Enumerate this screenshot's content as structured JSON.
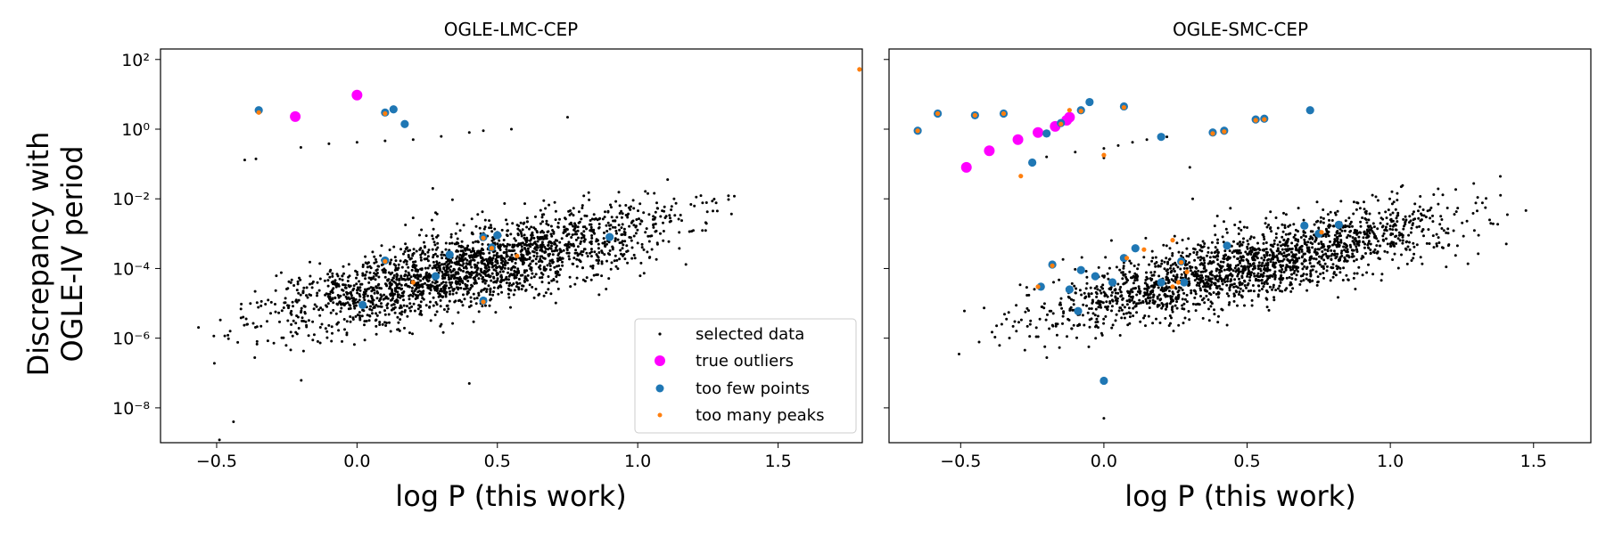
{
  "figure": {
    "ylabel_line1": "Discrepancy with",
    "ylabel_line2": "OGLE-IV period"
  },
  "legend": {
    "entries": [
      {
        "label": "selected data",
        "color": "#000000",
        "marker": "small-dot"
      },
      {
        "label": "true outliers",
        "color": "#ff00ff",
        "marker": "large-dot"
      },
      {
        "label": "too few points",
        "color": "#1f77b4",
        "marker": "medium-dot"
      },
      {
        "label": "too many peaks",
        "color": "#ff7f0e",
        "marker": "tiny-dot"
      }
    ]
  },
  "chart_data": [
    {
      "type": "scatter",
      "title": "OGLE-LMC-CEP",
      "xlabel": "log P (this work)",
      "ylabel": "Discrepancy with OGLE-IV period",
      "yscale": "log",
      "xlim": [
        -0.7,
        1.8
      ],
      "ylim": [
        1e-09,
        200
      ],
      "xticks": [
        -0.5,
        0.0,
        0.5,
        1.0,
        1.5
      ],
      "xtick_labels": [
        "−0.5",
        "0.0",
        "0.5",
        "1.0",
        "1.5"
      ],
      "yticks": [
        1e-08,
        1e-06,
        0.0001,
        0.01,
        1,
        100
      ],
      "ytick_labels": [
        "10⁻⁸",
        "10⁻⁶",
        "10⁻⁴",
        "10⁻²",
        "10⁰",
        "10²"
      ],
      "grid": false,
      "legend": "lower-right",
      "series": [
        {
          "name": "selected data",
          "color": "#000000",
          "trend": {
            "x_range": [
              -0.65,
              1.45
            ],
            "log10y_at_xmin": -6.0,
            "log10y_slope": 1.9,
            "scatter": 0.55
          },
          "extra_points": [
            [
              -0.4,
              0.13
            ],
            [
              -0.36,
              0.14
            ],
            [
              -0.2,
              0.3
            ],
            [
              -0.1,
              0.38
            ],
            [
              0.0,
              0.42
            ],
            [
              0.1,
              0.46
            ],
            [
              0.2,
              0.5
            ],
            [
              0.3,
              0.62
            ],
            [
              0.4,
              0.8
            ],
            [
              0.45,
              0.9
            ],
            [
              0.55,
              1.0
            ],
            [
              0.75,
              2.2
            ],
            [
              0.27,
              0.02
            ],
            [
              0.28,
              0.004
            ],
            [
              -0.49,
              1.2e-09
            ],
            [
              -0.44,
              4e-09
            ],
            [
              0.4,
              5e-08
            ]
          ]
        },
        {
          "name": "true outliers",
          "color": "#ff00ff",
          "points": [
            [
              -0.22,
              2.3
            ],
            [
              0.0,
              9.5
            ]
          ]
        },
        {
          "name": "too few points",
          "color": "#1f77b4",
          "points": [
            [
              -0.35,
              3.5
            ],
            [
              0.1,
              3.0
            ],
            [
              0.13,
              3.7
            ],
            [
              0.17,
              1.4
            ],
            [
              0.1,
              0.00017
            ],
            [
              0.33,
              0.00025
            ],
            [
              0.45,
              0.0008
            ],
            [
              0.48,
              0.0004
            ],
            [
              0.5,
              0.0009
            ],
            [
              0.02,
              9e-06
            ],
            [
              0.28,
              6e-05
            ],
            [
              0.45,
              1.2e-05
            ],
            [
              0.9,
              0.0008
            ]
          ]
        },
        {
          "name": "too many peaks",
          "color": "#ff7f0e",
          "points": [
            [
              -0.35,
              3.0
            ],
            [
              0.1,
              2.8
            ],
            [
              0.1,
              0.00016
            ],
            [
              0.45,
              0.00075
            ],
            [
              0.48,
              0.00038
            ],
            [
              0.2,
              4e-05
            ],
            [
              0.45,
              1.1e-05
            ],
            [
              0.57,
              0.00023
            ],
            [
              1.79,
              52
            ]
          ]
        }
      ]
    },
    {
      "type": "scatter",
      "title": "OGLE-SMC-CEP",
      "xlabel": "log P (this work)",
      "yscale": "log",
      "xlim": [
        -0.75,
        1.7
      ],
      "ylim": [
        1e-09,
        200
      ],
      "xticks": [
        -0.5,
        0.0,
        0.5,
        1.0,
        1.5
      ],
      "xtick_labels": [
        "−0.5",
        "0.0",
        "0.5",
        "1.0",
        "1.5"
      ],
      "grid": false,
      "series": [
        {
          "name": "selected data",
          "color": "#000000",
          "trend": {
            "x_range": [
              -0.58,
              1.6
            ],
            "log10y_at_xmin": -6.0,
            "log10y_slope": 1.9,
            "scatter": 0.5
          },
          "extra_points": [
            [
              -0.25,
              0.11
            ],
            [
              -0.2,
              0.16
            ],
            [
              -0.1,
              0.22
            ],
            [
              0.0,
              0.28
            ],
            [
              0.05,
              0.34
            ],
            [
              0.1,
              0.42
            ],
            [
              0.15,
              0.5
            ],
            [
              0.2,
              0.55
            ],
            [
              0.22,
              0.6
            ],
            [
              0.3,
              0.08
            ],
            [
              0.0,
              0.15
            ],
            [
              0.31,
              0.01
            ],
            [
              0.5,
              0.0015
            ],
            [
              0.0,
              5e-09
            ]
          ]
        },
        {
          "name": "true outliers",
          "color": "#ff00ff",
          "points": [
            [
              -0.48,
              0.08
            ],
            [
              -0.4,
              0.24
            ],
            [
              -0.3,
              0.5
            ],
            [
              -0.23,
              0.8
            ],
            [
              -0.17,
              1.2
            ],
            [
              -0.12,
              2.2
            ],
            [
              -0.13,
              1.8
            ]
          ]
        },
        {
          "name": "too few points",
          "color": "#1f77b4",
          "points": [
            [
              -0.65,
              0.9
            ],
            [
              -0.58,
              2.8
            ],
            [
              -0.45,
              2.5
            ],
            [
              -0.35,
              2.8
            ],
            [
              -0.2,
              0.75
            ],
            [
              -0.15,
              1.5
            ],
            [
              -0.08,
              3.5
            ],
            [
              -0.05,
              6.0
            ],
            [
              0.07,
              4.5
            ],
            [
              0.2,
              0.6
            ],
            [
              0.38,
              0.8
            ],
            [
              0.42,
              0.9
            ],
            [
              0.53,
              1.9
            ],
            [
              0.56,
              2.0
            ],
            [
              0.72,
              3.5
            ],
            [
              -0.25,
              0.11
            ],
            [
              0.7,
              0.0017
            ],
            [
              0.82,
              0.0018
            ],
            [
              0.75,
              0.001
            ],
            [
              -0.18,
              0.00013
            ],
            [
              -0.08,
              9e-05
            ],
            [
              0.03,
              4e-05
            ],
            [
              0.07,
              0.0002
            ],
            [
              0.11,
              0.00038
            ],
            [
              0.2,
              4e-05
            ],
            [
              0.27,
              0.00016
            ],
            [
              0.28,
              4e-05
            ],
            [
              0.43,
              0.00045
            ],
            [
              -0.03,
              6e-05
            ],
            [
              -0.12,
              2.5e-05
            ],
            [
              -0.09,
              6e-06
            ],
            [
              0.0,
              6e-08
            ],
            [
              -0.22,
              3e-05
            ]
          ]
        },
        {
          "name": "too many peaks",
          "color": "#ff7f0e",
          "points": [
            [
              -0.65,
              0.9
            ],
            [
              -0.58,
              2.8
            ],
            [
              -0.45,
              2.5
            ],
            [
              -0.35,
              2.8
            ],
            [
              -0.15,
              1.4
            ],
            [
              -0.08,
              3.3
            ],
            [
              0.07,
              4.2
            ],
            [
              0.38,
              0.75
            ],
            [
              0.42,
              0.85
            ],
            [
              0.53,
              1.8
            ],
            [
              0.56,
              1.9
            ],
            [
              -0.29,
              0.045
            ],
            [
              0.0,
              0.18
            ],
            [
              -0.18,
              0.00012
            ],
            [
              0.08,
              0.0002
            ],
            [
              0.14,
              0.00035
            ],
            [
              0.24,
              0.00065
            ],
            [
              0.27,
              0.00015
            ],
            [
              0.26,
              4e-05
            ],
            [
              0.29,
              8e-05
            ],
            [
              -0.23,
              3e-05
            ],
            [
              0.24,
              3e-05
            ],
            [
              0.76,
              0.0011
            ],
            [
              -0.12,
              3.5
            ]
          ]
        }
      ]
    }
  ]
}
